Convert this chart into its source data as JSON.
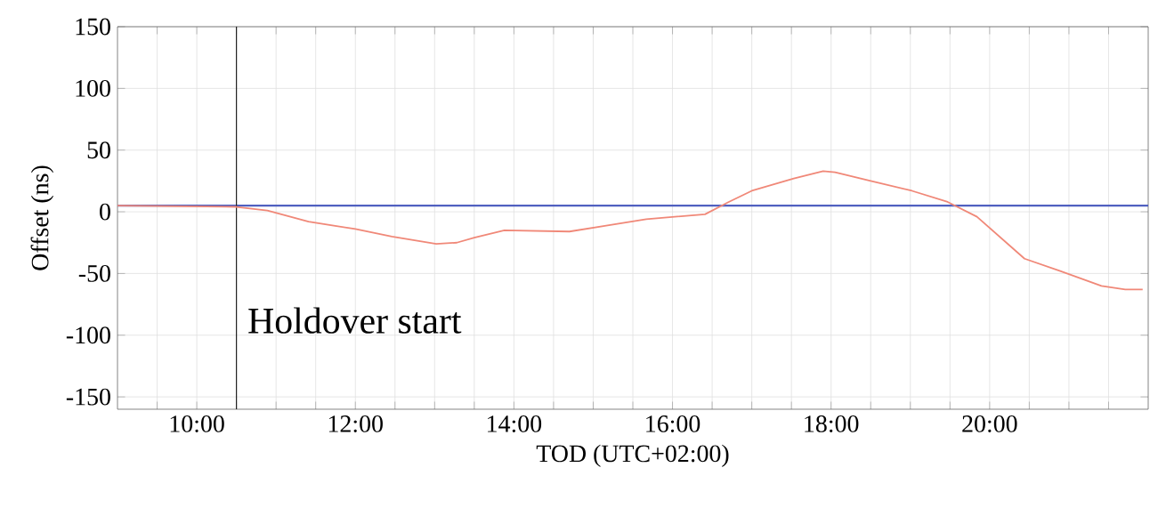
{
  "chart_data": {
    "type": "line",
    "xlabel": "TOD (UTC+02:00)",
    "ylabel": "Offset (ns)",
    "x": [
      9.0,
      10.5,
      10.89,
      11.41,
      12.0,
      12.46,
      13.02,
      13.28,
      13.5,
      13.88,
      14.7,
      15.67,
      16.41,
      16.71,
      17.0,
      17.53,
      17.9,
      18.05,
      18.5,
      19.02,
      19.47,
      19.84,
      20.44,
      20.89,
      21.41,
      21.71,
      21.93
    ],
    "series": [
      {
        "color": "#f08878",
        "values": [
          5,
          4,
          1,
          -8,
          -14,
          -20,
          -26,
          -25,
          -21,
          -15,
          -16,
          -6,
          -2,
          8,
          17,
          27,
          33,
          32,
          25,
          17,
          8,
          -4,
          -38,
          -48,
          -60,
          -63,
          -63
        ]
      }
    ],
    "xlim": [
      9,
      22
    ],
    "ylim": [
      -160,
      150
    ],
    "xticks": [
      {
        "value": 9.5,
        "label": null
      },
      {
        "value": 10,
        "label": "10:00"
      },
      {
        "value": 10.5,
        "label": null
      },
      {
        "value": 11,
        "label": null
      },
      {
        "value": 11.5,
        "label": null
      },
      {
        "value": 12,
        "label": "12:00"
      },
      {
        "value": 12.5,
        "label": null
      },
      {
        "value": 13,
        "label": null
      },
      {
        "value": 13.5,
        "label": null
      },
      {
        "value": 14,
        "label": "14:00"
      },
      {
        "value": 14.5,
        "label": null
      },
      {
        "value": 15,
        "label": null
      },
      {
        "value": 15.5,
        "label": null
      },
      {
        "value": 16,
        "label": "16:00"
      },
      {
        "value": 16.5,
        "label": null
      },
      {
        "value": 17,
        "label": null
      },
      {
        "value": 17.5,
        "label": null
      },
      {
        "value": 18,
        "label": "18:00"
      },
      {
        "value": 18.5,
        "label": null
      },
      {
        "value": 19,
        "label": null
      },
      {
        "value": 19.5,
        "label": null
      },
      {
        "value": 20,
        "label": "20:00"
      },
      {
        "value": 20.5,
        "label": null
      },
      {
        "value": 21,
        "label": null
      },
      {
        "value": 21.5,
        "label": null
      }
    ],
    "yticks": [
      -150,
      -100,
      -50,
      0,
      50,
      100,
      150
    ],
    "grid": true,
    "marker": "none",
    "line_style": "solid",
    "ref_lines": [
      {
        "axis": "y",
        "value": 5,
        "color": "#5060c0"
      },
      {
        "axis": "x",
        "value": 10.5,
        "color": "#202020"
      }
    ],
    "annotations": [
      {
        "text": "Holdover start",
        "x": 10.5,
        "y": -88
      }
    ]
  }
}
